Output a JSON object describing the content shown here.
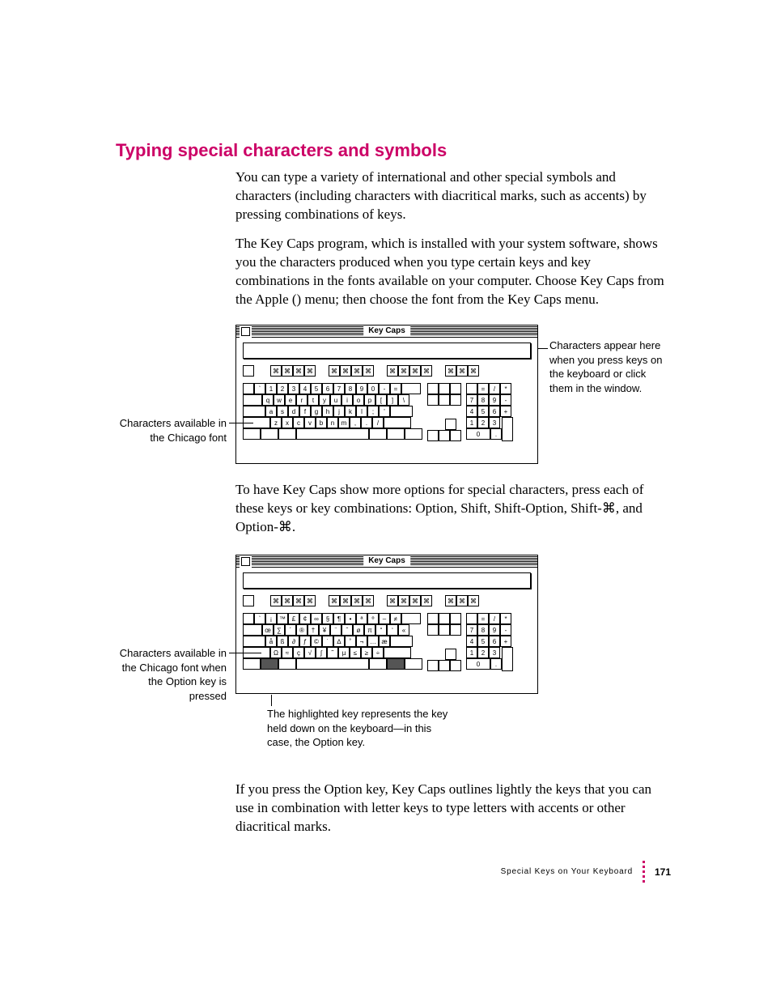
{
  "colors": {
    "accent": "#cc0066",
    "text": "#000000",
    "background": "#ffffff",
    "held_key_bg": "#555555"
  },
  "heading": "Typing special characters and symbols",
  "paragraphs": {
    "p1": "You can type a variety of international and other special symbols and characters (including characters with diacritical marks, such as accents) by pressing combinations of keys.",
    "p2_a": "The Key Caps program, which is installed with your system software, shows you the characters produced when you type certain keys and key combinations in the fonts available on your computer. Choose Key Caps from the Apple (",
    "apple_glyph": "",
    "p2_b": ") menu; then choose the font from the Key Caps menu.",
    "p3": "To have Key Caps show more options for special characters, press each of these keys or key combinations: Option, Shift, Shift-Option, Shift-⌘, and Option-⌘.",
    "p4": "If you press the Option key, Key Caps outlines lightly the keys that you can use in combination with letter keys to type letters with accents or other diacritical marks."
  },
  "callouts": {
    "right": "Characters appear here when you press keys on the keyboard or click them in the window.",
    "left1": "Characters available in the Chicago font",
    "left2": "Characters available in the Chicago font when the Option key is pressed",
    "bottom": "The highlighted key represents the key held down on the keyboard—in this case, the Option key."
  },
  "window_title": "Key Caps",
  "keyboard_normal": {
    "row1": [
      "`",
      "1",
      "2",
      "3",
      "4",
      "5",
      "6",
      "7",
      "8",
      "9",
      "0",
      "-",
      "="
    ],
    "row2": [
      "q",
      "w",
      "e",
      "r",
      "t",
      "y",
      "u",
      "i",
      "o",
      "p",
      "[",
      "]",
      "\\"
    ],
    "row3": [
      "a",
      "s",
      "d",
      "f",
      "g",
      "h",
      "j",
      "k",
      "l",
      ";",
      "'"
    ],
    "row4": [
      "z",
      "x",
      "c",
      "v",
      "b",
      "n",
      "m",
      ",",
      ".",
      "/"
    ]
  },
  "keyboard_option": {
    "row1": [
      "`",
      "¡",
      "™",
      "£",
      "¢",
      "∞",
      "§",
      "¶",
      "•",
      "ª",
      "º",
      "–",
      "≠"
    ],
    "row2": [
      "œ",
      "∑",
      "´",
      "®",
      "†",
      "¥",
      "¨",
      "ˆ",
      "ø",
      "π",
      "“",
      "‘",
      "«"
    ],
    "row3": [
      "å",
      "ß",
      "∂",
      "ƒ",
      "©",
      "˙",
      "∆",
      "˚",
      "¬",
      "…",
      "æ"
    ],
    "row4": [
      "Ω",
      "≈",
      "ç",
      "√",
      "∫",
      "˜",
      "µ",
      "≤",
      "≥",
      "÷"
    ]
  },
  "numpad": {
    "top": [
      "",
      "=",
      "/",
      "*"
    ],
    "r1": [
      "7",
      "8",
      "9",
      "-"
    ],
    "r2": [
      "4",
      "5",
      "6",
      "+"
    ],
    "r3": [
      "1",
      "2",
      "3"
    ],
    "r4": [
      "0",
      ".",
      ""
    ]
  },
  "footer": {
    "label": "Special Keys on Your Keyboard",
    "page": "171"
  }
}
